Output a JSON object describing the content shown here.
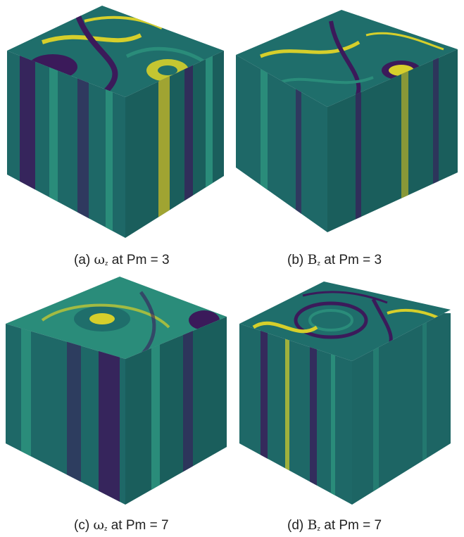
{
  "panels": [
    {
      "id": "a",
      "prefix": "(a) ",
      "symbol": "ω",
      "sub": "z",
      "suffix": " at Pm = 3"
    },
    {
      "id": "b",
      "prefix": "(b) ",
      "symbol": "B",
      "sub": "z",
      "suffix": " at Pm = 3"
    },
    {
      "id": "c",
      "prefix": "(c) ",
      "symbol": "ω",
      "sub": "z",
      "suffix": " at Pm = 7"
    },
    {
      "id": "d",
      "prefix": "(d) ",
      "symbol": "B",
      "sub": "z",
      "suffix": " at Pm = 7"
    }
  ],
  "colors": {
    "base": "#1f6e6b",
    "dark": "#3b1a5a",
    "bright": "#d6cf2b",
    "mid": "#2a8c7a",
    "side_shade": "#1a5e5c"
  }
}
